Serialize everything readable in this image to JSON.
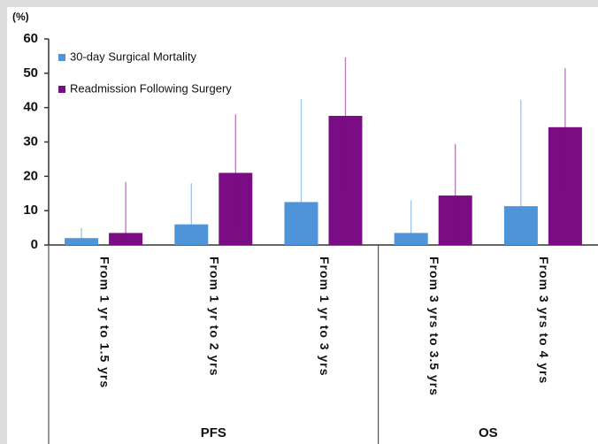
{
  "chart_data": {
    "type": "bar",
    "ylabel": "(%)",
    "groups": [
      {
        "name": "PFS",
        "categories": [
          "From 1 yr to 1.5 yrs",
          "From 1 yr to 2 yrs",
          "From 1 yr to 3 yrs"
        ]
      },
      {
        "name": "OS",
        "categories": [
          "From 3 yrs to 3.5 yrs",
          "From 3 yrs to 4 yrs"
        ]
      }
    ],
    "series": [
      {
        "name": "30-day Surgical Mortality",
        "color": "#4f93d8",
        "values": [
          2,
          6,
          12.5,
          3.5,
          11.3
        ],
        "error_low": [
          0,
          0,
          3,
          0,
          3
        ],
        "error_high": [
          5,
          18,
          42.5,
          13,
          42.3
        ]
      },
      {
        "name": "Readmission Following Surgery",
        "color": "#7a0d84",
        "values": [
          3.5,
          21,
          37.6,
          14.4,
          34.3
        ],
        "error_low": [
          0,
          5,
          16.7,
          2.3,
          17
        ],
        "error_high": [
          18.3,
          38,
          54.6,
          29.4,
          51.5
        ]
      }
    ],
    "ylim": [
      0,
      60
    ],
    "yticks": [
      0,
      10,
      20,
      30,
      40,
      50,
      60
    ],
    "grid": false,
    "legend": "upper-left"
  }
}
